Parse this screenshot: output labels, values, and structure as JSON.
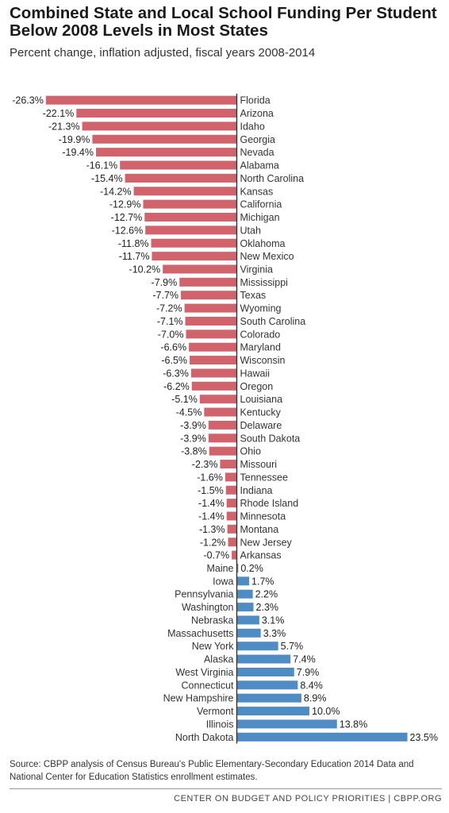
{
  "title": "Combined State and Local School Funding Per Student Below 2008 Levels in Most States",
  "subtitle": "Percent change, inflation adjusted, fiscal years 2008-2014",
  "source": "Source: CBPP analysis of Census Bureau's Public Elementary-Secondary Education 2014 Data and National Center for Education Statistics enrollment estimates.",
  "footer": "CENTER ON BUDGET AND POLICY PRIORITIES | CBPP.ORG",
  "colors": {
    "negative": "#d0636c",
    "positive": "#4f8cc4",
    "axis": "#333333"
  },
  "chart_data": {
    "type": "bar",
    "orientation": "horizontal",
    "title": "Combined State and Local School Funding Per Student Below 2008 Levels in Most States",
    "subtitle": "Percent change, inflation adjusted, fiscal years 2008-2014",
    "unit": "%",
    "categories": [
      "Florida",
      "Arizona",
      "Idaho",
      "Georgia",
      "Nevada",
      "Alabama",
      "North Carolina",
      "Kansas",
      "California",
      "Michigan",
      "Utah",
      "Oklahoma",
      "New Mexico",
      "Virginia",
      "Mississippi",
      "Texas",
      "Wyoming",
      "South Carolina",
      "Colorado",
      "Maryland",
      "Wisconsin",
      "Hawaii",
      "Oregon",
      "Louisiana",
      "Kentucky",
      "Delaware",
      "South Dakota",
      "Ohio",
      "Missouri",
      "Tennessee",
      "Indiana",
      "Rhode Island",
      "Minnesota",
      "Montana",
      "New Jersey",
      "Arkansas",
      "Maine",
      "Iowa",
      "Pennsylvania",
      "Washington",
      "Nebraska",
      "Massachusetts",
      "New York",
      "Alaska",
      "West Virginia",
      "Connecticut",
      "New Hampshire",
      "Vermont",
      "Illinois",
      "North Dakota"
    ],
    "values": [
      -26.3,
      -22.1,
      -21.3,
      -19.9,
      -19.4,
      -16.1,
      -15.4,
      -14.2,
      -12.9,
      -12.7,
      -12.6,
      -11.8,
      -11.7,
      -10.2,
      -7.9,
      -7.7,
      -7.2,
      -7.1,
      -7.0,
      -6.6,
      -6.5,
      -6.3,
      -6.2,
      -5.1,
      -4.5,
      -3.9,
      -3.9,
      -3.8,
      -2.3,
      -1.6,
      -1.5,
      -1.4,
      -1.4,
      -1.3,
      -1.2,
      -0.7,
      0.2,
      1.7,
      2.2,
      2.3,
      3.1,
      3.3,
      5.7,
      7.4,
      7.9,
      8.4,
      8.9,
      10.0,
      13.8,
      23.5
    ],
    "labels": [
      "-26.3%",
      "-22.1%",
      "-21.3%",
      "-19.9%",
      "-19.4%",
      "-16.1%",
      "-15.4%",
      "-14.2%",
      "-12.9%",
      "-12.7%",
      "-12.6%",
      "-11.8%",
      "-11.7%",
      "-10.2%",
      "-7.9%",
      "-7.7%",
      "-7.2%",
      "-7.1%",
      "-7.0%",
      "-6.6%",
      "-6.5%",
      "-6.3%",
      "-6.2%",
      "-5.1%",
      "-4.5%",
      "-3.9%",
      "-3.9%",
      "-3.8%",
      "-2.3%",
      "-1.6%",
      "-1.5%",
      "-1.4%",
      "-1.4%",
      "-1.3%",
      "-1.2%",
      "-0.7%",
      "0.2%",
      "1.7%",
      "2.2%",
      "2.3%",
      "3.1%",
      "3.3%",
      "5.7%",
      "7.4%",
      "7.9%",
      "8.4%",
      "8.9%",
      "10.0%",
      "13.8%",
      "23.5%"
    ]
  }
}
